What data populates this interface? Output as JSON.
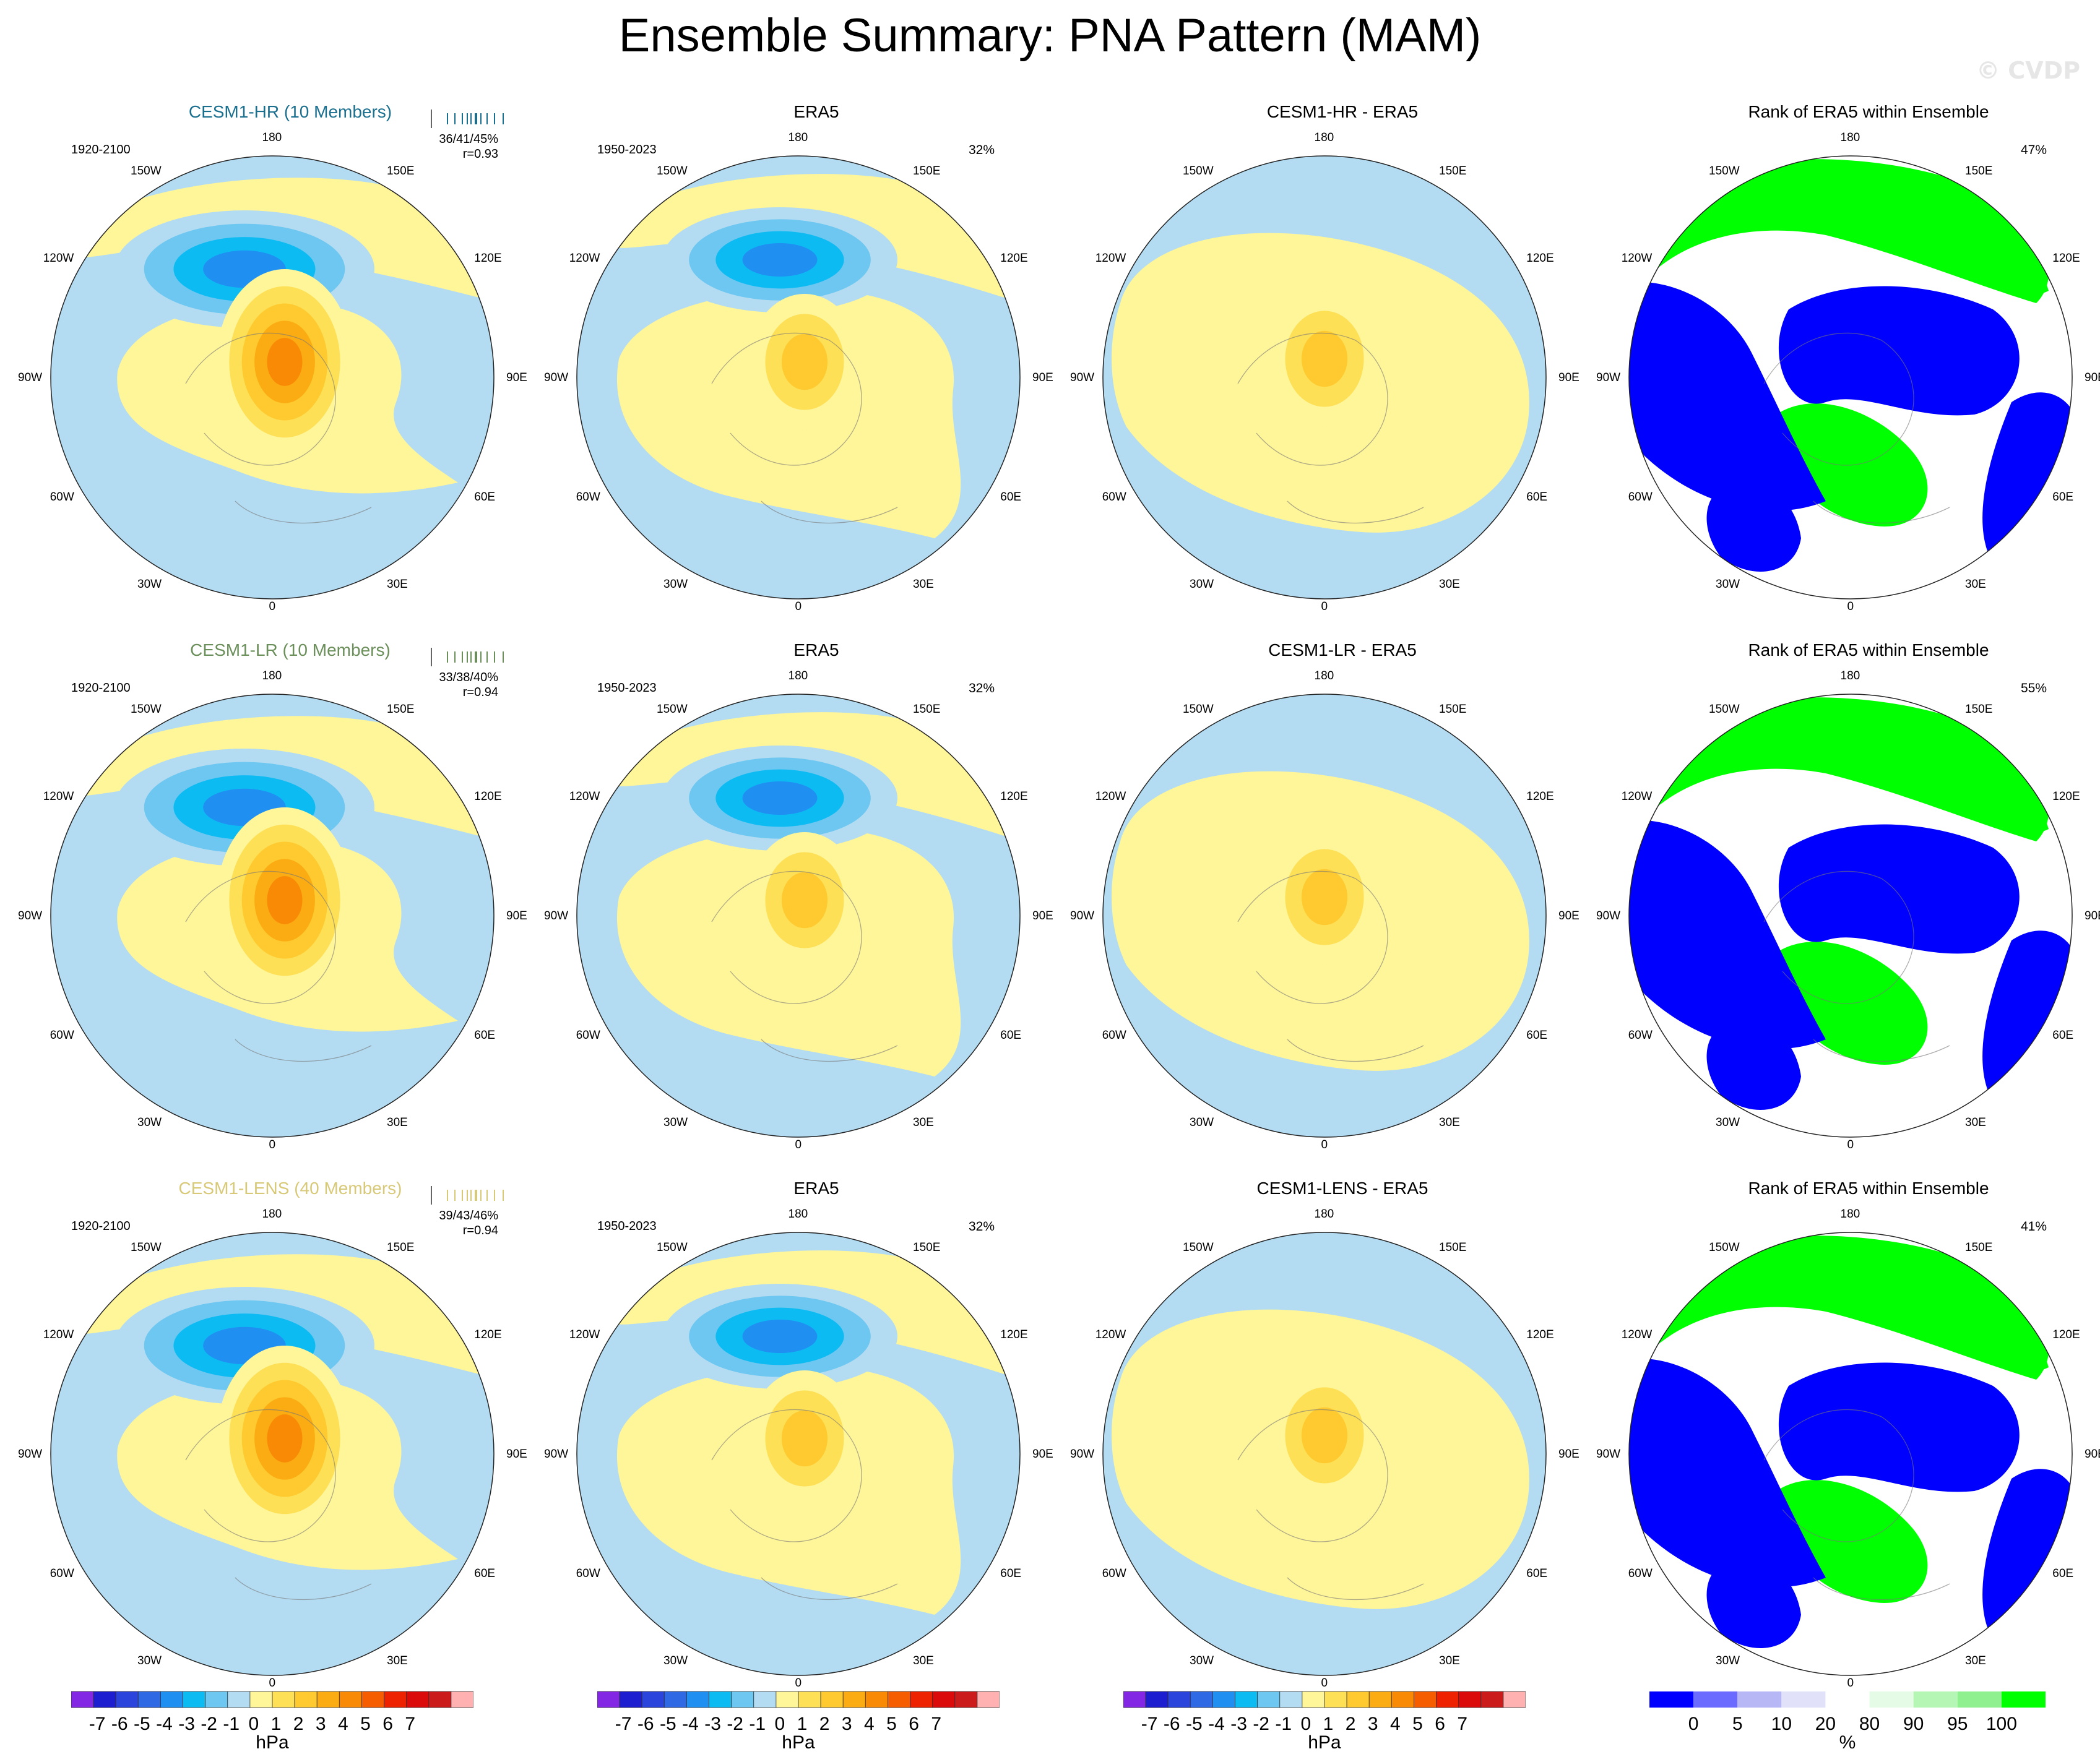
{
  "title": "Ensemble Summary: PNA Pattern (MAM)",
  "watermark": "© CVDP",
  "colors": {
    "ocean_blue": "#b3dcf2",
    "pale_yellow": "#fff599",
    "diverging": [
      "#8427e4",
      "#1d1ecf",
      "#2b44db",
      "#2f69e3",
      "#1f8ff2",
      "#0dbbf3",
      "#6dc7f0",
      "#b3dcf2",
      "#fff599",
      "#fee057",
      "#feca2f",
      "#fbac13",
      "#f98a06",
      "#f65d00",
      "#ee2200",
      "#dc0b0b",
      "#cc1b1b",
      "#ffb0b0"
    ],
    "rank": [
      "#0000ff",
      "#6b6bff",
      "#b7b7f6",
      "#e1e1fa",
      "#ffffff",
      "#e5fbe5",
      "#b5f6b5",
      "#8ef08e",
      "#00ff00"
    ]
  },
  "longitude_labels": {
    "top": "180",
    "bottom": "0",
    "left": [
      "150W",
      "120W",
      "90W",
      "60W",
      "30W"
    ],
    "right": [
      "150E",
      "120E",
      "90E",
      "60E",
      "30E"
    ]
  },
  "rows": [
    {
      "model": {
        "name": "CESM1-HR (10 Members)",
        "color": "#1a6f8f",
        "period": "1920-2100",
        "stats": "36/41/45%",
        "r": "r=0.93"
      },
      "era5": {
        "name": "ERA5",
        "period": "1950-2023",
        "pct": "32%"
      },
      "diff": {
        "name": "CESM1-HR - ERA5"
      },
      "rank": {
        "name": "Rank of ERA5 within Ensemble",
        "pct": "47%"
      }
    },
    {
      "model": {
        "name": "CESM1-LR (10 Members)",
        "color": "#6b8f5a",
        "period": "1920-2100",
        "stats": "33/38/40%",
        "r": "r=0.94"
      },
      "era5": {
        "name": "ERA5",
        "period": "1950-2023",
        "pct": "32%"
      },
      "diff": {
        "name": "CESM1-LR - ERA5"
      },
      "rank": {
        "name": "Rank of ERA5 within Ensemble",
        "pct": "55%"
      }
    },
    {
      "model": {
        "name": "CESM1-LENS (40 Members)",
        "color": "#d8c978",
        "period": "1920-2100",
        "stats": "39/43/46%",
        "r": "r=0.94"
      },
      "era5": {
        "name": "ERA5",
        "period": "1950-2023",
        "pct": "32%"
      },
      "diff": {
        "name": "CESM1-LENS - ERA5"
      },
      "rank": {
        "name": "Rank of ERA5 within Ensemble",
        "pct": "41%"
      }
    }
  ],
  "colorbars": {
    "hpa_labels": [
      "-7",
      "-6",
      "-5",
      "-4",
      "-3",
      "-2",
      "-1",
      "0",
      "1",
      "2",
      "3",
      "4",
      "5",
      "6",
      "7"
    ],
    "hpa_unit": "hPa",
    "rank_labels": [
      "0",
      "5",
      "10",
      "20",
      "80",
      "90",
      "95",
      "100"
    ],
    "rank_unit": "%"
  }
}
